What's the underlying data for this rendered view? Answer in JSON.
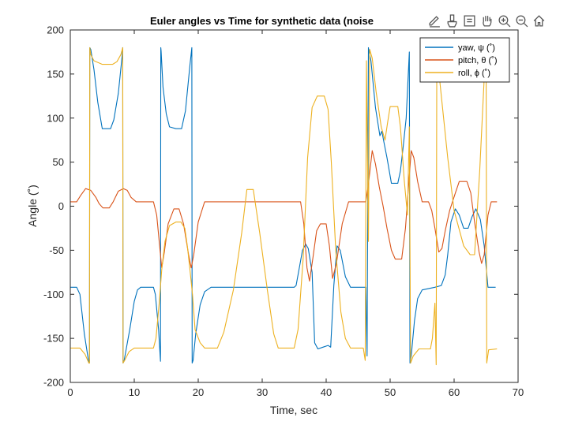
{
  "toolbar": {
    "items": [
      {
        "icon": "edit-data-tip-icon"
      },
      {
        "icon": "brush-icon"
      },
      {
        "icon": "data-tips-icon"
      },
      {
        "icon": "pan-hand-icon"
      },
      {
        "icon": "zoom-in-icon"
      },
      {
        "icon": "zoom-out-icon"
      },
      {
        "icon": "home-icon"
      }
    ]
  },
  "colors": {
    "yaw": "#0072BD",
    "pitch": "#D95319",
    "roll": "#EDB120"
  },
  "chart_data": {
    "type": "line",
    "title": "Euler angles vs Time for synthetic data (noise",
    "xlabel": "Time, sec",
    "ylabel": "Angle  (˚)",
    "xlim": [
      0,
      70
    ],
    "ylim": [
      -200,
      200
    ],
    "xticks": [
      0,
      10,
      20,
      30,
      40,
      50,
      60,
      70
    ],
    "yticks": [
      -200,
      -150,
      -100,
      -50,
      0,
      50,
      100,
      150,
      200
    ],
    "grid": false,
    "legend": "top-right",
    "series": [
      {
        "name": "yaw,  ψ  (˚)",
        "color": "#0072BD",
        "points": [
          [
            0,
            -92
          ],
          [
            1,
            -92
          ],
          [
            1.5,
            -100
          ],
          [
            2.2,
            -145
          ],
          [
            2.9,
            -178
          ],
          [
            3.0,
            -178
          ],
          [
            3.05,
            180
          ],
          [
            3.2,
            178
          ],
          [
            3.7,
            155
          ],
          [
            4.3,
            118
          ],
          [
            4.9,
            92
          ],
          [
            5,
            88
          ],
          [
            6.3,
            88
          ],
          [
            6.8,
            98
          ],
          [
            7.5,
            128
          ],
          [
            8.1,
            170
          ],
          [
            8.2,
            180
          ],
          [
            8.25,
            -178
          ],
          [
            8.4,
            -176
          ],
          [
            9.3,
            -140
          ],
          [
            10,
            -108
          ],
          [
            10.5,
            -95
          ],
          [
            11,
            -92
          ],
          [
            13,
            -92
          ],
          [
            13.3,
            -100
          ],
          [
            13.8,
            -140
          ],
          [
            14.1,
            -176
          ],
          [
            14.15,
            180
          ],
          [
            14.2,
            176
          ],
          [
            14.5,
            135
          ],
          [
            15,
            105
          ],
          [
            15.5,
            90
          ],
          [
            16.5,
            88
          ],
          [
            17.4,
            88
          ],
          [
            18,
            108
          ],
          [
            18.7,
            160
          ],
          [
            19.0,
            180
          ],
          [
            19.05,
            -178
          ],
          [
            19.2,
            -175
          ],
          [
            19.6,
            -145
          ],
          [
            20.3,
            -112
          ],
          [
            21,
            -97
          ],
          [
            22,
            -92
          ],
          [
            35,
            -92
          ],
          [
            35.3,
            -90
          ],
          [
            35.8,
            -70
          ],
          [
            36.3,
            -50
          ],
          [
            36.8,
            -43
          ],
          [
            37.2,
            -48
          ],
          [
            37.8,
            -75
          ],
          [
            38.2,
            -155
          ],
          [
            38.7,
            -162
          ],
          [
            39.5,
            -160
          ],
          [
            40.3,
            -158
          ],
          [
            40.7,
            -160
          ],
          [
            41.2,
            -90
          ],
          [
            41.7,
            -45
          ],
          [
            42.2,
            -50
          ],
          [
            43,
            -80
          ],
          [
            43.8,
            -92
          ],
          [
            46.2,
            -92
          ],
          [
            46.4,
            -170
          ],
          [
            46.6,
            180
          ],
          [
            46.7,
            175
          ],
          [
            47,
            165
          ],
          [
            47.7,
            112
          ],
          [
            48.4,
            80
          ],
          [
            48.7,
            85
          ],
          [
            49.1,
            70
          ],
          [
            49.5,
            55
          ],
          [
            50.2,
            26
          ],
          [
            51.2,
            26
          ],
          [
            51.6,
            40
          ],
          [
            52,
            65
          ],
          [
            52.5,
            100
          ],
          [
            53.0,
            175
          ],
          [
            53.1,
            -178
          ],
          [
            53.3,
            -170
          ],
          [
            53.8,
            -130
          ],
          [
            54.3,
            -105
          ],
          [
            55,
            -95
          ],
          [
            57,
            -92
          ],
          [
            58,
            -90
          ],
          [
            58.6,
            -78
          ],
          [
            59,
            -55
          ],
          [
            59.5,
            -18
          ],
          [
            60.2,
            -3
          ],
          [
            60.8,
            -10
          ],
          [
            61.5,
            -25
          ],
          [
            62.2,
            -25
          ],
          [
            62.8,
            -12
          ],
          [
            63.4,
            -3
          ],
          [
            64.1,
            -15
          ],
          [
            64.7,
            -45
          ],
          [
            65.3,
            -92
          ],
          [
            66.5,
            -92
          ]
        ]
      },
      {
        "name": "pitch,  θ  (˚)",
        "color": "#D95319",
        "points": [
          [
            0,
            5
          ],
          [
            1,
            5
          ],
          [
            1.6,
            12
          ],
          [
            2.4,
            20
          ],
          [
            3.2,
            18
          ],
          [
            4,
            10
          ],
          [
            4.5,
            3
          ],
          [
            5.1,
            -2
          ],
          [
            6.1,
            -2
          ],
          [
            6.7,
            5
          ],
          [
            7.5,
            17
          ],
          [
            8.3,
            20
          ],
          [
            8.9,
            18
          ],
          [
            9.5,
            10
          ],
          [
            10.3,
            5
          ],
          [
            13,
            5
          ],
          [
            13.5,
            -10
          ],
          [
            14.1,
            -55
          ],
          [
            14.3,
            -70
          ],
          [
            14.7,
            -52
          ],
          [
            15.3,
            -20
          ],
          [
            16.2,
            -3
          ],
          [
            17,
            -3
          ],
          [
            17.7,
            -20
          ],
          [
            18.5,
            -55
          ],
          [
            18.9,
            -70
          ],
          [
            19.3,
            -55
          ],
          [
            20,
            -18
          ],
          [
            21,
            5
          ],
          [
            36,
            5
          ],
          [
            36.5,
            -20
          ],
          [
            37,
            -70
          ],
          [
            37.4,
            -85
          ],
          [
            37.9,
            -60
          ],
          [
            38.5,
            -28
          ],
          [
            39.1,
            -20
          ],
          [
            40,
            -20
          ],
          [
            40.5,
            -45
          ],
          [
            41,
            -82
          ],
          [
            41.6,
            -65
          ],
          [
            42.5,
            -20
          ],
          [
            43.5,
            5
          ],
          [
            46.2,
            5
          ],
          [
            46.6,
            25
          ],
          [
            47.2,
            63
          ],
          [
            47.7,
            48
          ],
          [
            48.3,
            22
          ],
          [
            48.9,
            0
          ],
          [
            49.5,
            -25
          ],
          [
            50.2,
            -50
          ],
          [
            50.8,
            -60
          ],
          [
            51.8,
            -60
          ],
          [
            52.4,
            -25
          ],
          [
            53.0,
            35
          ],
          [
            53.3,
            63
          ],
          [
            53.7,
            55
          ],
          [
            54.3,
            28
          ],
          [
            55,
            5
          ],
          [
            56,
            5
          ],
          [
            56.5,
            -5
          ],
          [
            57,
            -25
          ],
          [
            57.6,
            -52
          ],
          [
            58.1,
            -48
          ],
          [
            58.6,
            -28
          ],
          [
            59.3,
            -5
          ],
          [
            60.2,
            15
          ],
          [
            60.8,
            28
          ],
          [
            62,
            28
          ],
          [
            62.6,
            15
          ],
          [
            63.2,
            -18
          ],
          [
            63.9,
            -52
          ],
          [
            64.3,
            -65
          ],
          [
            64.7,
            -55
          ],
          [
            65.3,
            -10
          ],
          [
            65.8,
            5
          ],
          [
            66.7,
            5
          ]
        ]
      },
      {
        "name": "roll,  ϕ  (˚)",
        "color": "#EDB120",
        "points": [
          [
            0,
            -161
          ],
          [
            1.5,
            -161
          ],
          [
            2.3,
            -168
          ],
          [
            2.9,
            -178
          ],
          [
            3.0,
            -178
          ],
          [
            3.05,
            180
          ],
          [
            3.2,
            172
          ],
          [
            3.7,
            165
          ],
          [
            5,
            161
          ],
          [
            6.6,
            161
          ],
          [
            7.3,
            164
          ],
          [
            7.9,
            172
          ],
          [
            8.2,
            180
          ],
          [
            8.25,
            -178
          ],
          [
            8.5,
            -175
          ],
          [
            9.2,
            -165
          ],
          [
            10,
            -161
          ],
          [
            13,
            -161
          ],
          [
            13.4,
            -150
          ],
          [
            13.9,
            -110
          ],
          [
            14.3,
            -72
          ],
          [
            14.8,
            -40
          ],
          [
            15.5,
            -22
          ],
          [
            16.5,
            -18
          ],
          [
            17.3,
            -18
          ],
          [
            17.9,
            -25
          ],
          [
            18.3,
            -45
          ],
          [
            18.7,
            -72
          ],
          [
            19.1,
            -100
          ],
          [
            19.5,
            -140
          ],
          [
            20.3,
            -155
          ],
          [
            21,
            -161
          ],
          [
            23,
            -161
          ],
          [
            24,
            -143
          ],
          [
            25.5,
            -95
          ],
          [
            26.8,
            -30
          ],
          [
            27.6,
            19
          ],
          [
            28.6,
            19
          ],
          [
            29.6,
            -30
          ],
          [
            30.8,
            -95
          ],
          [
            31.8,
            -145
          ],
          [
            32.5,
            -161
          ],
          [
            35,
            -161
          ],
          [
            35.6,
            -140
          ],
          [
            36.4,
            -60
          ],
          [
            37.1,
            55
          ],
          [
            37.8,
            112
          ],
          [
            38.6,
            125
          ],
          [
            39.7,
            125
          ],
          [
            40.3,
            110
          ],
          [
            40.8,
            50
          ],
          [
            41.5,
            -50
          ],
          [
            42.3,
            -120
          ],
          [
            43,
            -150
          ],
          [
            43.8,
            -161
          ],
          [
            45.8,
            -161
          ],
          [
            46.1,
            -175
          ],
          [
            46.3,
            165
          ],
          [
            46.6,
            -40
          ],
          [
            46.8,
            178
          ],
          [
            47.2,
            168
          ],
          [
            47.8,
            130
          ],
          [
            48.6,
            90
          ],
          [
            49.2,
            75
          ],
          [
            49.6,
            95
          ],
          [
            50,
            113
          ],
          [
            51.2,
            113
          ],
          [
            51.6,
            90
          ],
          [
            52.2,
            30
          ],
          [
            52.7,
            -10
          ],
          [
            53,
            90
          ],
          [
            53.2,
            -178
          ],
          [
            53.6,
            -170
          ],
          [
            54.5,
            -162
          ],
          [
            56.3,
            -162
          ],
          [
            56.6,
            -150
          ],
          [
            57,
            -110
          ],
          [
            57.2,
            -180
          ],
          [
            57.3,
            180
          ],
          [
            57.5,
            160
          ],
          [
            58,
            125
          ],
          [
            59,
            55
          ],
          [
            60,
            -5
          ],
          [
            61.5,
            -45
          ],
          [
            62.5,
            -55
          ],
          [
            63.2,
            -55
          ],
          [
            64,
            40
          ],
          [
            64.8,
            160
          ],
          [
            65,
            180
          ],
          [
            65.1,
            -178
          ],
          [
            65.4,
            -163
          ],
          [
            66.7,
            -162
          ]
        ]
      }
    ]
  }
}
